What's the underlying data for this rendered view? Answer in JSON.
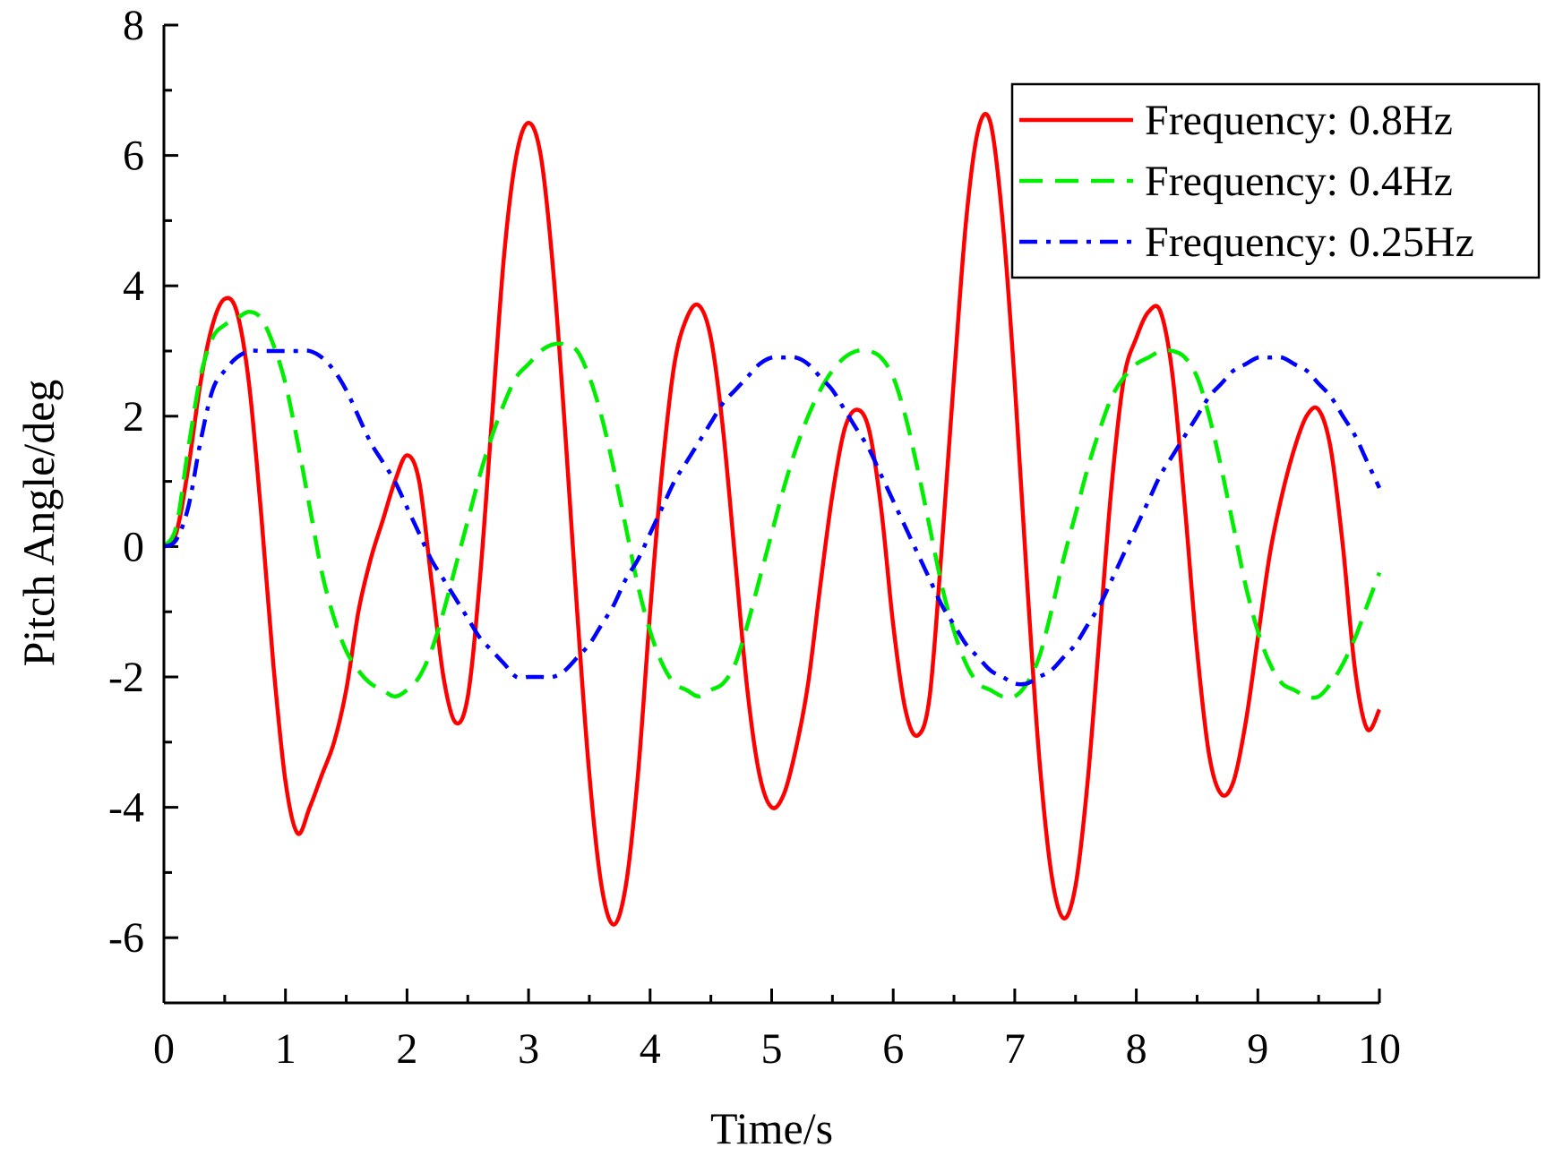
{
  "chart_data": {
    "type": "line",
    "title": "",
    "xlabel": "Time/s",
    "ylabel": "Pitch Angle/deg",
    "xlim": [
      0,
      10
    ],
    "ylim": [
      -7,
      8
    ],
    "x_ticks": [
      0,
      1,
      2,
      3,
      4,
      5,
      6,
      7,
      8,
      9,
      10
    ],
    "y_ticks": [
      -6,
      -4,
      -2,
      0,
      2,
      4,
      6,
      8
    ],
    "x_tick_labels": [
      "0",
      "1",
      "2",
      "3",
      "4",
      "5",
      "6",
      "7",
      "8",
      "9",
      "10"
    ],
    "y_tick_labels": [
      "-6",
      "-4",
      "-2",
      "0",
      "2",
      "4",
      "6",
      "8"
    ],
    "grid": false,
    "legend_position": "top-right",
    "series": [
      {
        "name": "Frequency: 0.8Hz",
        "color": "#ff0000",
        "style": "solid",
        "points": [
          [
            0,
            0
          ],
          [
            0.1,
            0.2
          ],
          [
            0.2,
            1.2
          ],
          [
            0.3,
            2.5
          ],
          [
            0.4,
            3.4
          ],
          [
            0.5,
            3.8
          ],
          [
            0.6,
            3.6
          ],
          [
            0.7,
            2.5
          ],
          [
            0.8,
            0.5
          ],
          [
            0.9,
            -1.8
          ],
          [
            1.0,
            -3.6
          ],
          [
            1.1,
            -4.4
          ],
          [
            1.2,
            -4.0
          ],
          [
            1.3,
            -3.5
          ],
          [
            1.4,
            -3.0
          ],
          [
            1.5,
            -2.2
          ],
          [
            1.6,
            -1.0
          ],
          [
            1.7,
            -0.2
          ],
          [
            1.8,
            0.4
          ],
          [
            1.9,
            1.0
          ],
          [
            2.0,
            1.4
          ],
          [
            2.1,
            1.0
          ],
          [
            2.2,
            -0.5
          ],
          [
            2.3,
            -2.0
          ],
          [
            2.4,
            -2.7
          ],
          [
            2.5,
            -2.3
          ],
          [
            2.6,
            -0.5
          ],
          [
            2.7,
            2.0
          ],
          [
            2.8,
            4.5
          ],
          [
            2.9,
            6.0
          ],
          [
            3.0,
            6.5
          ],
          [
            3.1,
            6.0
          ],
          [
            3.2,
            4.3
          ],
          [
            3.3,
            1.8
          ],
          [
            3.4,
            -1.0
          ],
          [
            3.5,
            -3.5
          ],
          [
            3.6,
            -5.2
          ],
          [
            3.7,
            -5.8
          ],
          [
            3.8,
            -5.2
          ],
          [
            3.9,
            -3.5
          ],
          [
            4.0,
            -1.0
          ],
          [
            4.1,
            1.2
          ],
          [
            4.2,
            2.8
          ],
          [
            4.3,
            3.5
          ],
          [
            4.4,
            3.7
          ],
          [
            4.5,
            3.2
          ],
          [
            4.6,
            1.8
          ],
          [
            4.7,
            -0.2
          ],
          [
            4.8,
            -2.2
          ],
          [
            4.9,
            -3.5
          ],
          [
            5.0,
            -4.0
          ],
          [
            5.1,
            -3.8
          ],
          [
            5.2,
            -3.1
          ],
          [
            5.3,
            -2.1
          ],
          [
            5.4,
            -0.6
          ],
          [
            5.5,
            0.8
          ],
          [
            5.6,
            1.8
          ],
          [
            5.7,
            2.1
          ],
          [
            5.8,
            1.8
          ],
          [
            5.9,
            0.6
          ],
          [
            6.0,
            -1.2
          ],
          [
            6.1,
            -2.5
          ],
          [
            6.2,
            -2.9
          ],
          [
            6.3,
            -2.3
          ],
          [
            6.4,
            0.0
          ],
          [
            6.5,
            2.6
          ],
          [
            6.6,
            5.0
          ],
          [
            6.7,
            6.4
          ],
          [
            6.8,
            6.5
          ],
          [
            6.9,
            5.0
          ],
          [
            7.0,
            2.5
          ],
          [
            7.1,
            -0.5
          ],
          [
            7.2,
            -3.2
          ],
          [
            7.3,
            -5.0
          ],
          [
            7.4,
            -5.7
          ],
          [
            7.5,
            -5.2
          ],
          [
            7.6,
            -3.6
          ],
          [
            7.7,
            -1.3
          ],
          [
            7.8,
            1.0
          ],
          [
            7.9,
            2.6
          ],
          [
            8.0,
            3.2
          ],
          [
            8.1,
            3.6
          ],
          [
            8.2,
            3.6
          ],
          [
            8.3,
            2.6
          ],
          [
            8.4,
            0.6
          ],
          [
            8.5,
            -1.6
          ],
          [
            8.6,
            -3.2
          ],
          [
            8.7,
            -3.8
          ],
          [
            8.8,
            -3.6
          ],
          [
            8.9,
            -2.7
          ],
          [
            9.0,
            -1.4
          ],
          [
            9.1,
            -0.1
          ],
          [
            9.2,
            0.8
          ],
          [
            9.3,
            1.5
          ],
          [
            9.4,
            2.0
          ],
          [
            9.5,
            2.1
          ],
          [
            9.6,
            1.5
          ],
          [
            9.7,
            0.0
          ],
          [
            9.8,
            -1.9
          ],
          [
            9.9,
            -2.8
          ],
          [
            10.0,
            -2.5
          ]
        ]
      },
      {
        "name": "Frequency: 0.4Hz",
        "color": "#00ee00",
        "style": "dashed",
        "points": [
          [
            0,
            0
          ],
          [
            0.1,
            0.3
          ],
          [
            0.2,
            1.5
          ],
          [
            0.3,
            2.6
          ],
          [
            0.4,
            3.2
          ],
          [
            0.5,
            3.4
          ],
          [
            0.6,
            3.5
          ],
          [
            0.7,
            3.6
          ],
          [
            0.8,
            3.5
          ],
          [
            0.9,
            3.1
          ],
          [
            1.0,
            2.5
          ],
          [
            1.1,
            1.6
          ],
          [
            1.2,
            0.6
          ],
          [
            1.3,
            -0.4
          ],
          [
            1.4,
            -1.1
          ],
          [
            1.5,
            -1.6
          ],
          [
            1.6,
            -1.9
          ],
          [
            1.7,
            -2.1
          ],
          [
            1.8,
            -2.2
          ],
          [
            1.9,
            -2.3
          ],
          [
            2.0,
            -2.2
          ],
          [
            2.1,
            -2.0
          ],
          [
            2.2,
            -1.6
          ],
          [
            2.3,
            -1.0
          ],
          [
            2.4,
            -0.3
          ],
          [
            2.5,
            0.4
          ],
          [
            2.6,
            1.1
          ],
          [
            2.7,
            1.7
          ],
          [
            2.8,
            2.2
          ],
          [
            2.9,
            2.6
          ],
          [
            3.0,
            2.8
          ],
          [
            3.1,
            3.0
          ],
          [
            3.2,
            3.1
          ],
          [
            3.3,
            3.1
          ],
          [
            3.4,
            3.0
          ],
          [
            3.5,
            2.6
          ],
          [
            3.6,
            2.0
          ],
          [
            3.7,
            1.2
          ],
          [
            3.8,
            0.3
          ],
          [
            3.9,
            -0.6
          ],
          [
            4.0,
            -1.3
          ],
          [
            4.1,
            -1.8
          ],
          [
            4.2,
            -2.1
          ],
          [
            4.3,
            -2.2
          ],
          [
            4.4,
            -2.3
          ],
          [
            4.5,
            -2.2
          ],
          [
            4.6,
            -2.1
          ],
          [
            4.7,
            -1.8
          ],
          [
            4.8,
            -1.2
          ],
          [
            4.9,
            -0.5
          ],
          [
            5.0,
            0.2
          ],
          [
            5.1,
            0.9
          ],
          [
            5.2,
            1.5
          ],
          [
            5.3,
            2.0
          ],
          [
            5.4,
            2.4
          ],
          [
            5.5,
            2.7
          ],
          [
            5.6,
            2.9
          ],
          [
            5.7,
            3.0
          ],
          [
            5.8,
            3.0
          ],
          [
            5.9,
            2.9
          ],
          [
            6.0,
            2.6
          ],
          [
            6.1,
            2.0
          ],
          [
            6.2,
            1.2
          ],
          [
            6.3,
            0.3
          ],
          [
            6.4,
            -0.6
          ],
          [
            6.5,
            -1.3
          ],
          [
            6.6,
            -1.8
          ],
          [
            6.7,
            -2.1
          ],
          [
            6.8,
            -2.2
          ],
          [
            6.9,
            -2.3
          ],
          [
            7.0,
            -2.3
          ],
          [
            7.1,
            -2.1
          ],
          [
            7.2,
            -1.7
          ],
          [
            7.3,
            -1.0
          ],
          [
            7.4,
            -0.2
          ],
          [
            7.5,
            0.5
          ],
          [
            7.6,
            1.2
          ],
          [
            7.7,
            1.8
          ],
          [
            7.8,
            2.3
          ],
          [
            7.9,
            2.6
          ],
          [
            8.0,
            2.8
          ],
          [
            8.1,
            2.9
          ],
          [
            8.2,
            3.0
          ],
          [
            8.3,
            3.0
          ],
          [
            8.4,
            2.9
          ],
          [
            8.5,
            2.6
          ],
          [
            8.6,
            2.0
          ],
          [
            8.7,
            1.2
          ],
          [
            8.8,
            0.3
          ],
          [
            8.9,
            -0.6
          ],
          [
            9.0,
            -1.3
          ],
          [
            9.1,
            -1.8
          ],
          [
            9.2,
            -2.1
          ],
          [
            9.3,
            -2.2
          ],
          [
            9.4,
            -2.3
          ],
          [
            9.5,
            -2.3
          ],
          [
            9.6,
            -2.1
          ],
          [
            9.7,
            -1.8
          ],
          [
            9.8,
            -1.4
          ],
          [
            9.9,
            -0.9
          ],
          [
            10.0,
            -0.4
          ]
        ]
      },
      {
        "name": "Frequency: 0.25Hz",
        "color": "#0000ff",
        "style": "dashdot",
        "points": [
          [
            0,
            0
          ],
          [
            0.1,
            0.1
          ],
          [
            0.2,
            0.6
          ],
          [
            0.3,
            1.6
          ],
          [
            0.4,
            2.4
          ],
          [
            0.5,
            2.7
          ],
          [
            0.6,
            2.9
          ],
          [
            0.7,
            3.0
          ],
          [
            0.8,
            3.0
          ],
          [
            0.9,
            3.0
          ],
          [
            1.0,
            3.0
          ],
          [
            1.1,
            3.0
          ],
          [
            1.2,
            3.0
          ],
          [
            1.3,
            2.9
          ],
          [
            1.4,
            2.7
          ],
          [
            1.5,
            2.4
          ],
          [
            1.6,
            2.0
          ],
          [
            1.7,
            1.6
          ],
          [
            1.8,
            1.3
          ],
          [
            1.9,
            1.0
          ],
          [
            2.0,
            0.6
          ],
          [
            2.1,
            0.2
          ],
          [
            2.2,
            -0.2
          ],
          [
            2.3,
            -0.5
          ],
          [
            2.4,
            -0.8
          ],
          [
            2.5,
            -1.1
          ],
          [
            2.6,
            -1.4
          ],
          [
            2.7,
            -1.6
          ],
          [
            2.8,
            -1.8
          ],
          [
            2.9,
            -2.0
          ],
          [
            3.0,
            -2.0
          ],
          [
            3.1,
            -2.0
          ],
          [
            3.2,
            -2.0
          ],
          [
            3.3,
            -1.9
          ],
          [
            3.4,
            -1.7
          ],
          [
            3.5,
            -1.5
          ],
          [
            3.6,
            -1.2
          ],
          [
            3.7,
            -0.9
          ],
          [
            3.8,
            -0.5
          ],
          [
            3.9,
            -0.2
          ],
          [
            4.0,
            0.2
          ],
          [
            4.1,
            0.6
          ],
          [
            4.2,
            1.0
          ],
          [
            4.3,
            1.3
          ],
          [
            4.4,
            1.6
          ],
          [
            4.5,
            1.9
          ],
          [
            4.6,
            2.2
          ],
          [
            4.7,
            2.4
          ],
          [
            4.8,
            2.6
          ],
          [
            4.9,
            2.8
          ],
          [
            5.0,
            2.9
          ],
          [
            5.1,
            2.9
          ],
          [
            5.2,
            2.9
          ],
          [
            5.3,
            2.8
          ],
          [
            5.4,
            2.6
          ],
          [
            5.5,
            2.4
          ],
          [
            5.6,
            2.1
          ],
          [
            5.7,
            1.8
          ],
          [
            5.8,
            1.5
          ],
          [
            5.9,
            1.1
          ],
          [
            6.0,
            0.7
          ],
          [
            6.1,
            0.3
          ],
          [
            6.2,
            -0.1
          ],
          [
            6.3,
            -0.5
          ],
          [
            6.4,
            -0.9
          ],
          [
            6.5,
            -1.2
          ],
          [
            6.6,
            -1.5
          ],
          [
            6.7,
            -1.7
          ],
          [
            6.8,
            -1.9
          ],
          [
            6.9,
            -2.0
          ],
          [
            7.0,
            -2.1
          ],
          [
            7.1,
            -2.1
          ],
          [
            7.2,
            -2.0
          ],
          [
            7.3,
            -1.9
          ],
          [
            7.4,
            -1.7
          ],
          [
            7.5,
            -1.5
          ],
          [
            7.6,
            -1.2
          ],
          [
            7.7,
            -0.9
          ],
          [
            7.8,
            -0.5
          ],
          [
            7.9,
            -0.1
          ],
          [
            8.0,
            0.3
          ],
          [
            8.1,
            0.7
          ],
          [
            8.2,
            1.1
          ],
          [
            8.3,
            1.4
          ],
          [
            8.4,
            1.7
          ],
          [
            8.5,
            2.0
          ],
          [
            8.6,
            2.3
          ],
          [
            8.7,
            2.5
          ],
          [
            8.8,
            2.7
          ],
          [
            8.9,
            2.8
          ],
          [
            9.0,
            2.9
          ],
          [
            9.1,
            2.9
          ],
          [
            9.2,
            2.9
          ],
          [
            9.3,
            2.8
          ],
          [
            9.4,
            2.7
          ],
          [
            9.5,
            2.5
          ],
          [
            9.6,
            2.3
          ],
          [
            9.7,
            2.0
          ],
          [
            9.8,
            1.7
          ],
          [
            9.9,
            1.3
          ],
          [
            10.0,
            0.9
          ]
        ]
      }
    ]
  }
}
